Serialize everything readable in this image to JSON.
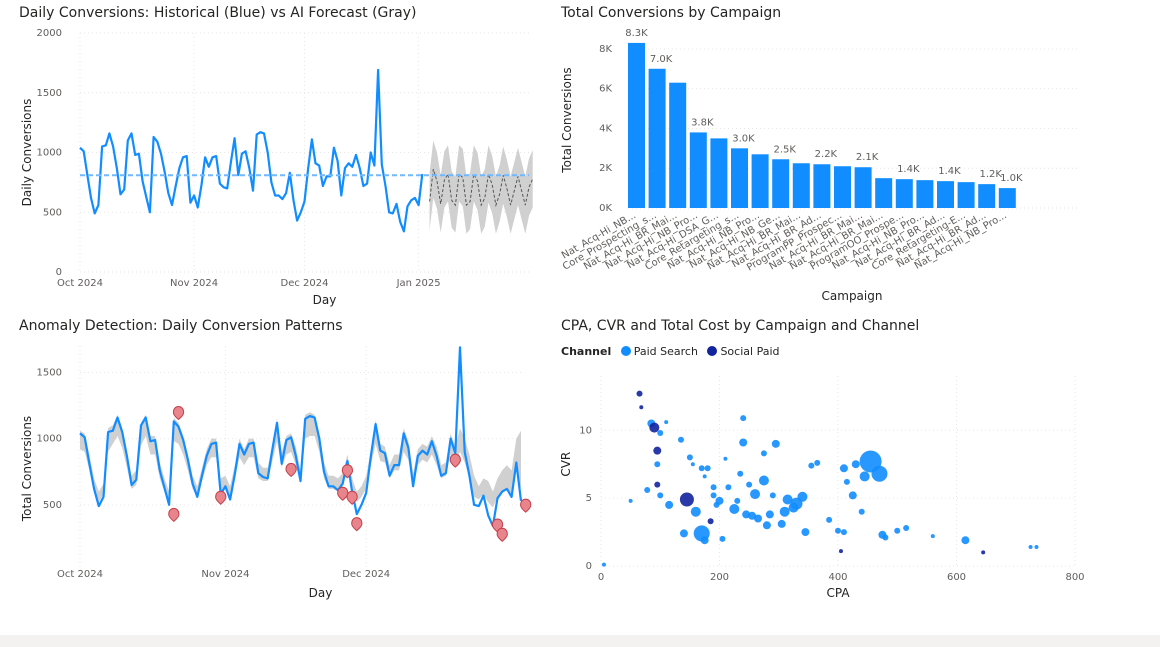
{
  "chart_data": [
    {
      "type": "line",
      "title": "Daily Conversions: Historical (Blue) vs AI Forecast (Gray)",
      "xlabel": "Day",
      "ylabel": "Daily Conversions",
      "ylim": [
        0,
        2000
      ],
      "yticks": [
        0,
        500,
        1000,
        1500,
        2000
      ],
      "xticks": [
        "2024-10-01",
        "2024-11-01",
        "2024-12-01",
        "2025-01-01"
      ],
      "xtick_labels": [
        "Oct 2024",
        "Nov 2024",
        "Dec 2024",
        "Jan 2025"
      ],
      "xlim": [
        "2024-10-01",
        "2025-01-31"
      ],
      "reference_line": 810,
      "colors": {
        "historical": "#118dff",
        "forecast": "#555555",
        "band": "#d0d0d0",
        "reference": "#71b8ff"
      },
      "series": [
        {
          "start": "2024-10-01",
          "values": [
            1040,
            1010,
            810,
            620,
            490,
            560,
            1050,
            1060,
            1160,
            1050,
            870,
            650,
            690,
            1100,
            1160,
            980,
            990,
            760,
            630,
            500,
            1130,
            1090,
            990,
            840,
            660,
            560,
            720,
            870,
            960,
            970,
            580,
            640,
            540,
            730,
            960,
            880,
            960,
            970,
            740,
            710,
            700,
            920,
            1120,
            810,
            990,
            1010,
            870,
            680,
            1150,
            1170,
            1160,
            1000,
            750,
            640,
            640,
            610,
            660,
            830,
            600,
            430,
            500,
            590,
            870,
            1110,
            910,
            890,
            720,
            800,
            800,
            1040,
            930,
            640,
            870,
            910,
            880,
            980,
            870,
            720,
            740,
            1000,
            890,
            1690,
            900,
            720,
            500,
            490,
            570,
            420,
            340,
            550,
            600,
            620,
            560,
            820
          ]
        }
      ],
      "forecast": {
        "start": "2025-01-04",
        "values": [
          590,
          860,
          760,
          570,
          770,
          820,
          600,
          560,
          820,
          790,
          560,
          590,
          820,
          760,
          560,
          620,
          820,
          730,
          560,
          650,
          810,
          700,
          560,
          680,
          800,
          680,
          560,
          710,
          780
        ],
        "lower": [
          350,
          620,
          530,
          330,
          540,
          590,
          370,
          330,
          590,
          550,
          320,
          360,
          590,
          520,
          320,
          380,
          580,
          490,
          320,
          420,
          570,
          460,
          320,
          440,
          560,
          440,
          320,
          470,
          540
        ],
        "upper": [
          830,
          1100,
          1000,
          810,
          1010,
          1060,
          840,
          800,
          1060,
          1030,
          800,
          830,
          1060,
          1000,
          800,
          860,
          1060,
          970,
          800,
          890,
          1050,
          940,
          800,
          920,
          1040,
          920,
          800,
          950,
          1020
        ]
      }
    },
    {
      "type": "bar",
      "title": "Total Conversions by Campaign",
      "xlabel": "Campaign",
      "ylabel": "Total Conversions",
      "ylim": [
        0,
        9000
      ],
      "ytick_labels": [
        "0K",
        "2K",
        "4K",
        "6K",
        "8K"
      ],
      "color": "#118dff",
      "categories": [
        "Nat_Acq-Hi_NB...",
        "Core_Prospecting_s...",
        "Nat_Acq-Hi_BR_Mai...",
        "Nat_Acq-Hi_NB_Pro...",
        "Nat_Acq-Hi_DSA_G...",
        "Core_Retargeting_s...",
        "Nat_Acq-Hi_NB_Pro...",
        "Nat_Acq-Hi_NB_Ge...",
        "Nat_Acq-Hi_BR_Mai...",
        "Nat_Acq-Hi_BR_Ad...",
        "ProgramPP_Prospec...",
        "Nat_Acq-Hi_BR_Mai...",
        "Nat_Acq-Hi_BR_Mai...",
        "ProgramOO_Prospe...",
        "Nat_Acq-Hi_NB_Pro...",
        "Nat_Acq-Hi_BR_Ad...",
        "Core_Retargeting-E...",
        "Nat_Acq-Hi_BR_Ad...",
        "Nat_Acq-Hi_NB_Pro..."
      ],
      "values": [
        8300,
        7000,
        6300,
        3800,
        3500,
        3000,
        2700,
        2450,
        2250,
        2200,
        2100,
        2050,
        1500,
        1450,
        1400,
        1350,
        1300,
        1200,
        1000
      ],
      "data_labels": [
        "8.3K",
        "7.0K",
        "",
        "3.8K",
        "",
        "3.0K",
        "",
        "2.5K",
        "",
        "2.2K",
        "",
        "2.1K",
        "",
        "1.4K",
        "",
        "1.4K",
        "",
        "1.2K",
        "1.0K"
      ]
    },
    {
      "type": "line",
      "title": "Anomaly Detection: Daily Conversion Patterns",
      "xlabel": "Day",
      "ylabel": "Total Conversions",
      "ylim": [
        0,
        1700
      ],
      "yticks": [
        500,
        1000,
        1500
      ],
      "xticks": [
        "2024-10-01",
        "2024-11-01",
        "2024-12-01"
      ],
      "xtick_labels": [
        "Oct 2024",
        "Nov 2024",
        "Dec 2024"
      ],
      "colors": {
        "line": "#118dff",
        "band": "#d0d0d0",
        "anomaly_fill": "#e8848c",
        "anomaly_stroke": "#c4404b"
      },
      "series": [
        {
          "start": "2024-10-01",
          "values": [
            1040,
            1010,
            810,
            620,
            490,
            560,
            1050,
            1060,
            1160,
            1050,
            870,
            650,
            690,
            1100,
            1160,
            980,
            990,
            760,
            630,
            500,
            1130,
            1090,
            990,
            840,
            660,
            560,
            720,
            870,
            960,
            970,
            580,
            640,
            540,
            730,
            960,
            880,
            960,
            970,
            740,
            710,
            700,
            920,
            1120,
            810,
            990,
            1010,
            870,
            680,
            1150,
            1170,
            1160,
            1000,
            750,
            640,
            640,
            610,
            660,
            830,
            600,
            430,
            500,
            590,
            870,
            1110,
            910,
            890,
            720,
            800,
            800,
            1040,
            930,
            640,
            870,
            910,
            880,
            980,
            870,
            720,
            740,
            1000,
            890,
            1690,
            900,
            720,
            500,
            490,
            570,
            420,
            340,
            550,
            600,
            620,
            560,
            820,
            530
          ]
        }
      ],
      "band": {
        "lower": [
          920,
          900,
          760,
          600,
          520,
          580,
          900,
          960,
          1020,
          930,
          780,
          620,
          650,
          950,
          1020,
          880,
          880,
          700,
          600,
          520,
          980,
          960,
          880,
          760,
          620,
          560,
          680,
          800,
          860,
          860,
          600,
          620,
          560,
          700,
          860,
          800,
          860,
          860,
          700,
          680,
          680,
          830,
          980,
          780,
          880,
          900,
          800,
          660,
          1000,
          1020,
          1020,
          900,
          700,
          620,
          620,
          600,
          640,
          760,
          600,
          520,
          560,
          620,
          800,
          960,
          830,
          820,
          700,
          760,
          760,
          900,
          840,
          640,
          800,
          840,
          820,
          880,
          800,
          700,
          720,
          880,
          820,
          900,
          820,
          700,
          560,
          540,
          580,
          520,
          480,
          560,
          600,
          620,
          580,
          760,
          620
        ],
        "upper": [
          1060,
          1040,
          880,
          700,
          600,
          660,
          1080,
          1100,
          1180,
          1080,
          900,
          720,
          760,
          1120,
          1180,
          1020,
          1020,
          820,
          700,
          600,
          1160,
          1120,
          1020,
          880,
          720,
          640,
          780,
          920,
          1000,
          1000,
          700,
          720,
          640,
          800,
          1000,
          920,
          1000,
          1000,
          820,
          780,
          780,
          960,
          1150,
          900,
          1020,
          1040,
          940,
          760,
          1180,
          1200,
          1180,
          1040,
          820,
          720,
          720,
          700,
          740,
          880,
          700,
          600,
          640,
          720,
          920,
          1140,
          960,
          940,
          800,
          880,
          880,
          1080,
          980,
          740,
          920,
          960,
          940,
          1020,
          940,
          800,
          820,
          1040,
          940,
          1080,
          1000,
          880,
          720,
          640,
          700,
          680,
          600,
          700,
          760,
          800,
          760,
          1000,
          1060
        ]
      },
      "anomalies": [
        {
          "date": "2024-10-21",
          "value": 420
        },
        {
          "date": "2024-10-22",
          "value": 1190
        },
        {
          "date": "2024-10-31",
          "value": 550
        },
        {
          "date": "2024-11-15",
          "value": 760
        },
        {
          "date": "2024-11-26",
          "value": 580
        },
        {
          "date": "2024-11-27",
          "value": 750
        },
        {
          "date": "2024-11-28",
          "value": 550
        },
        {
          "date": "2024-11-29",
          "value": 350
        },
        {
          "date": "2024-12-20",
          "value": 830
        },
        {
          "date": "2024-12-29",
          "value": 340
        },
        {
          "date": "2024-12-30",
          "value": 270
        },
        {
          "date": "2025-01-04",
          "value": 490
        }
      ]
    },
    {
      "type": "scatter",
      "title": "CPA, CVR and Total Cost by Campaign and Channel",
      "xlabel": "CPA",
      "ylabel": "CVR",
      "xlim": [
        0,
        800
      ],
      "ylim": [
        0,
        14
      ],
      "xticks": [
        0,
        200,
        400,
        600,
        800
      ],
      "yticks": [
        0,
        5,
        10
      ],
      "legend": {
        "title": "Channel",
        "placement": "top-left"
      },
      "series": [
        {
          "name": "Paid Search",
          "color": "#118dff",
          "points": [
            [
              5,
              0.1,
              2
            ],
            [
              50,
              4.8,
              2
            ],
            [
              78,
              5.6,
              3
            ],
            [
              85,
              10.5,
              4
            ],
            [
              95,
              7.5,
              3
            ],
            [
              100,
              9.8,
              3
            ],
            [
              100,
              5.2,
              3
            ],
            [
              110,
              10.6,
              2
            ],
            [
              115,
              4.5,
              4
            ],
            [
              135,
              9.3,
              3
            ],
            [
              140,
              2.4,
              4
            ],
            [
              150,
              8.0,
              3
            ],
            [
              155,
              7.5,
              2
            ],
            [
              160,
              4.0,
              5
            ],
            [
              170,
              2.4,
              8
            ],
            [
              170,
              7.2,
              3
            ],
            [
              175,
              1.9,
              4
            ],
            [
              175,
              6.6,
              2
            ],
            [
              180,
              7.2,
              3
            ],
            [
              190,
              5.8,
              3
            ],
            [
              190,
              5.2,
              3
            ],
            [
              195,
              4.5,
              3
            ],
            [
              200,
              4.8,
              4
            ],
            [
              205,
              2.0,
              3
            ],
            [
              210,
              7.9,
              2
            ],
            [
              215,
              5.8,
              3
            ],
            [
              225,
              4.2,
              5
            ],
            [
              230,
              4.8,
              3
            ],
            [
              235,
              6.8,
              3
            ],
            [
              240,
              9.1,
              4
            ],
            [
              240,
              10.9,
              3
            ],
            [
              245,
              3.8,
              4
            ],
            [
              250,
              6.0,
              3
            ],
            [
              255,
              3.7,
              4
            ],
            [
              260,
              5.3,
              5
            ],
            [
              265,
              3.5,
              4
            ],
            [
              275,
              8.3,
              3
            ],
            [
              275,
              6.3,
              5
            ],
            [
              280,
              3.0,
              4
            ],
            [
              285,
              3.8,
              4
            ],
            [
              290,
              5.2,
              3
            ],
            [
              295,
              9.0,
              4
            ],
            [
              305,
              3.1,
              4
            ],
            [
              310,
              4.0,
              5
            ],
            [
              315,
              4.9,
              5
            ],
            [
              325,
              4.3,
              5
            ],
            [
              330,
              4.6,
              6
            ],
            [
              340,
              5.1,
              5
            ],
            [
              345,
              2.5,
              4
            ],
            [
              355,
              7.4,
              3
            ],
            [
              365,
              7.6,
              3
            ],
            [
              385,
              3.4,
              3
            ],
            [
              400,
              2.6,
              3
            ],
            [
              410,
              2.5,
              3
            ],
            [
              415,
              6.2,
              3
            ],
            [
              410,
              7.2,
              4
            ],
            [
              430,
              7.5,
              4
            ],
            [
              425,
              5.2,
              4
            ],
            [
              440,
              4.0,
              3
            ],
            [
              445,
              6.6,
              5
            ],
            [
              455,
              7.7,
              11
            ],
            [
              470,
              6.8,
              8
            ],
            [
              475,
              2.3,
              4
            ],
            [
              480,
              2.1,
              3
            ],
            [
              500,
              2.6,
              3
            ],
            [
              515,
              2.8,
              3
            ],
            [
              560,
              2.2,
              2
            ],
            [
              615,
              1.9,
              4
            ],
            [
              725,
              1.4,
              2
            ],
            [
              735,
              1.4,
              2
            ]
          ]
        },
        {
          "name": "Social Paid",
          "color": "#12239e",
          "points": [
            [
              65,
              12.7,
              3
            ],
            [
              68,
              11.7,
              2
            ],
            [
              90,
              10.2,
              5
            ],
            [
              95,
              8.5,
              4
            ],
            [
              95,
              6.0,
              3
            ],
            [
              145,
              4.9,
              7
            ],
            [
              185,
              3.3,
              3
            ],
            [
              405,
              1.1,
              2
            ],
            [
              645,
              1.0,
              2
            ]
          ]
        }
      ]
    }
  ]
}
